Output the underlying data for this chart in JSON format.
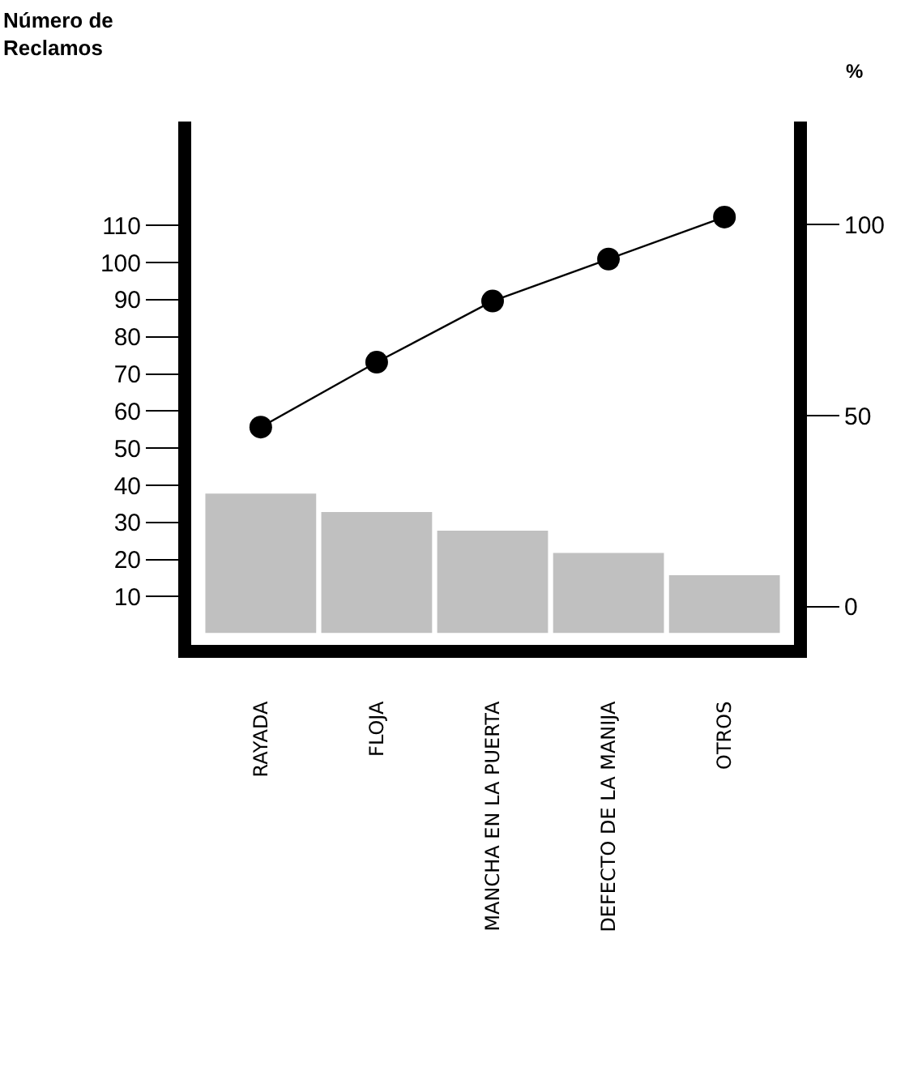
{
  "chart_data": {
    "type": "bar",
    "ylabel": "Número de\nReclamos",
    "y2label": "%",
    "categories": [
      "RAYADA",
      "FLOJA",
      "MANCHA EN LA PUERTA",
      "DEFECTO DE LA MANIJA",
      "OTROS"
    ],
    "series": [
      {
        "color": "#c0c0c0",
        "values": [
          38,
          33,
          28,
          22,
          16
        ]
      },
      {
        "type": "line",
        "axis": "y2",
        "color": "#000000",
        "marker": "circle",
        "values": [
          47,
          64,
          80,
          91,
          102
        ]
      }
    ],
    "ylim": [
      -3,
      138
    ],
    "yticks": [
      10,
      20,
      30,
      40,
      50,
      60,
      70,
      80,
      90,
      100,
      110
    ],
    "y2lim": [
      -10,
      127
    ],
    "y2ticks": [
      0,
      50,
      100
    ],
    "grid": false
  }
}
